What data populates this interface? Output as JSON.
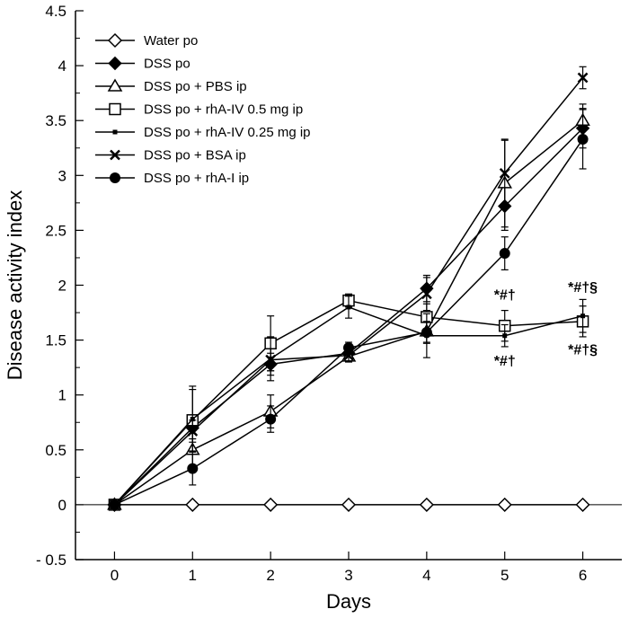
{
  "chart_data": {
    "type": "line",
    "title": "",
    "xlabel": "Days",
    "ylabel": "Disease activity index",
    "xlim": [
      -0.5,
      6.5
    ],
    "ylim": [
      -0.5,
      4.5
    ],
    "x_ticks": [
      0,
      1,
      2,
      3,
      4,
      5,
      6
    ],
    "y_ticks": [
      -0.5,
      0,
      0.5,
      1,
      1.5,
      2,
      2.5,
      3,
      3.5,
      4,
      4.5
    ],
    "y_tick_labels": [
      "- 0.5",
      "0",
      "0.5",
      "1",
      "1.5",
      "2",
      "2.5",
      "3",
      "3.5",
      "4",
      "4.5"
    ],
    "x": [
      0,
      1,
      2,
      3,
      4,
      5,
      6
    ],
    "legend_position": "top-left",
    "series": [
      {
        "name": "Water po",
        "marker": "diamond-open",
        "values": [
          0,
          0,
          0,
          0,
          0,
          0,
          0
        ],
        "errors": [
          0,
          0,
          0,
          0,
          0,
          0,
          0
        ]
      },
      {
        "name": "DSS po",
        "marker": "diamond-filled",
        "values": [
          0,
          0.7,
          1.28,
          1.38,
          1.97,
          2.72,
          3.43
        ],
        "errors": [
          0,
          0.1,
          0.1,
          0.05,
          0.12,
          0.22,
          0.18
        ]
      },
      {
        "name": "DSS po + PBS ip",
        "marker": "triangle-open",
        "values": [
          0,
          0.5,
          0.85,
          1.35,
          1.58,
          2.93,
          3.5
        ],
        "errors": [
          0,
          0.15,
          0.15,
          0.05,
          0.1,
          0.4,
          0.15
        ]
      },
      {
        "name": "DSS po + rhA-IV 0.5 mg ip",
        "marker": "square-open",
        "values": [
          0,
          0.77,
          1.47,
          1.86,
          1.71,
          1.63,
          1.67
        ],
        "errors": [
          0,
          0.28,
          0.25,
          0.06,
          0.12,
          0.14,
          0.14
        ]
      },
      {
        "name": "DSS po + rhA-IV 0.25 mg ip",
        "marker": "small-filled",
        "values": [
          0,
          0.78,
          1.33,
          1.8,
          1.54,
          1.54,
          1.72
        ],
        "errors": [
          0,
          0.3,
          0.2,
          0.1,
          0.2,
          0.1,
          0.15
        ]
      },
      {
        "name": "DSS po + BSA ip",
        "marker": "x",
        "values": [
          0,
          0.67,
          1.32,
          1.36,
          1.92,
          3.02,
          3.89
        ],
        "errors": [
          0,
          0.1,
          0.1,
          0.05,
          0.15,
          0.3,
          0.1
        ]
      },
      {
        "name": "DSS po + rhA-I ip",
        "marker": "circle-filled",
        "values": [
          0,
          0.33,
          0.78,
          1.43,
          1.57,
          2.29,
          3.33
        ],
        "errors": [
          0,
          0.15,
          0.12,
          0.05,
          0.1,
          0.15,
          0.27
        ]
      }
    ],
    "annotations": [
      {
        "text": "*#†",
        "x": 5,
        "y": 1.87,
        "placement": "above"
      },
      {
        "text": "*#†",
        "x": 5,
        "y": 1.35,
        "placement": "below"
      },
      {
        "text": "*#†§",
        "x": 6,
        "y": 1.94,
        "placement": "above"
      },
      {
        "text": "*#†§",
        "x": 6,
        "y": 1.45,
        "placement": "below"
      }
    ]
  }
}
